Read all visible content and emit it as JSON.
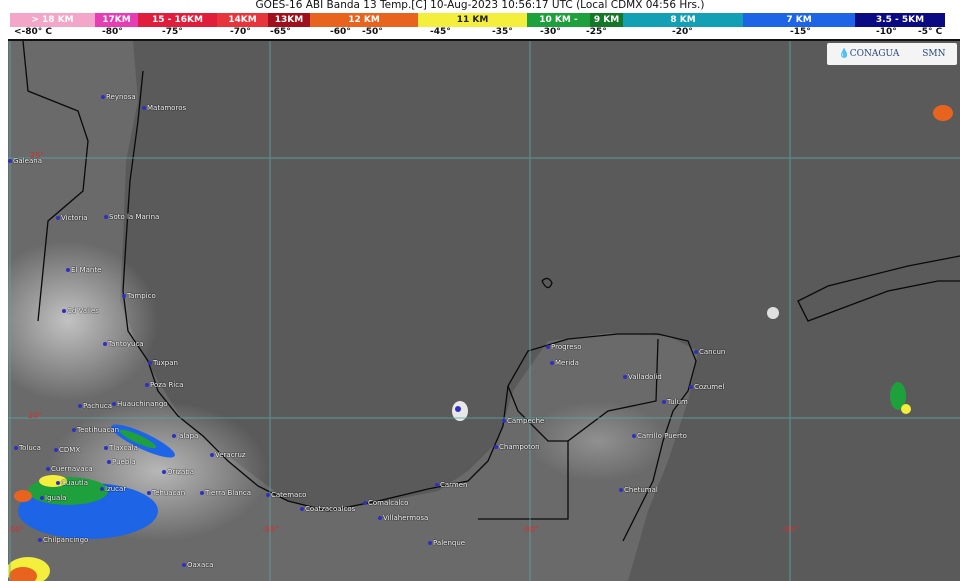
{
  "title": "GOES-16 ABI Banda 13 Temp.[C] 10-Aug-2023 10:56:17 UTC (Local CDMX  04:56 Hrs.)",
  "legend": [
    {
      "label": "> 18 KM",
      "color": "#f4a6c8",
      "w": 85
    },
    {
      "label": "17KM",
      "color": "#e63cb4",
      "w": 43
    },
    {
      "label": "15 - 16KM",
      "color": "#e01e3c",
      "w": 79
    },
    {
      "label": "14KM",
      "color": "#e8353c",
      "w": 51
    },
    {
      "label": "13KM",
      "color": "#a0101c",
      "w": 42
    },
    {
      "label": "12 KM",
      "color": "#e8641e",
      "w": 108
    },
    {
      "label": "11 KM",
      "color": "#f4ee3c",
      "w": 109
    },
    {
      "label": "10 KM -",
      "color": "#1ea03c",
      "w": 63
    },
    {
      "label": "9 KM",
      "color": "#147828",
      "w": 33
    },
    {
      "label": "8 KM",
      "color": "#14a0b4",
      "w": 120
    },
    {
      "label": "7 KM",
      "color": "#1e64e6",
      "w": 112
    },
    {
      "label": "3.5 - 5KM",
      "color": "#0a0a82",
      "w": 90
    }
  ],
  "temps": [
    "<-80° C",
    "-80°",
    "-75°",
    "-70°",
    "-65°",
    "-60°",
    "-50°",
    "-45°",
    "-35°",
    "-30°",
    "-25°",
    "-20°",
    "-15°",
    "-10°",
    "-5°  C"
  ],
  "logo": {
    "conagua": "CONAGUA",
    "smn": "SMN"
  },
  "grid_labels": [
    "25°",
    "20°",
    "-100°",
    "-95°",
    "-90°",
    "-85°"
  ],
  "cities": [
    "Reynosa",
    "Matamoros",
    "Galeana",
    "Victoria",
    "Soto la Marina",
    "El Mante",
    "Tampico",
    "Cd Valles",
    "Tantoyuca",
    "Tuxpan",
    "Poza Rica",
    "Pachuca",
    "Huauchinango",
    "Teotihuacan",
    "Toluca",
    "CDMX",
    "Tlaxcala",
    "Puebla",
    "Cuernavaca",
    "Cuautla",
    "Iguala",
    "Izucar",
    "Jalapa",
    "Veracruz",
    "Orizaba",
    "Tehuacan",
    "Tierra Blanca",
    "Chilpancingo",
    "Oaxaca",
    "Catemaco",
    "Coatzacoalcos",
    "Comalcalco",
    "Villahermosa",
    "Palenque",
    "Carmen",
    "Champoton",
    "Campeche",
    "Progreso",
    "Merida",
    "Valladolid",
    "Cancun",
    "Cozumel",
    "Tulum",
    "Carrillo Puerto",
    "Chetumal"
  ]
}
